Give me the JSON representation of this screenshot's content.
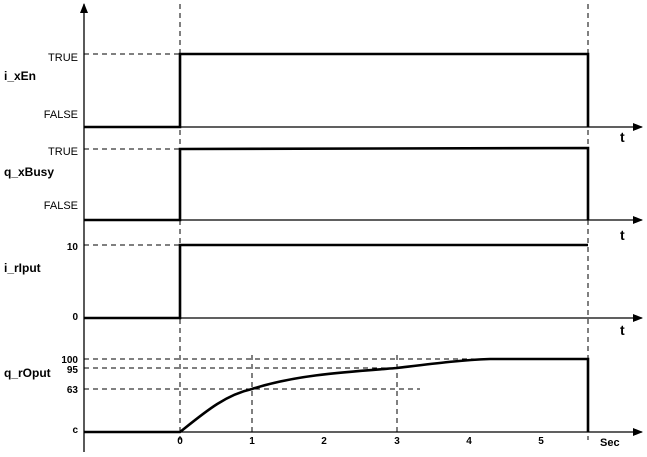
{
  "signals": [
    {
      "name": "i_xEn",
      "high_label": "TRUE",
      "low_label": "FALSE",
      "axis_label": "t"
    },
    {
      "name": "q_xBusy",
      "high_label": "TRUE",
      "low_label": "FALSE",
      "axis_label": "t"
    },
    {
      "name": "i_rIput",
      "high_label": "10",
      "low_label": "0",
      "axis_label": "t"
    },
    {
      "name": "q_rOput",
      "level_labels": [
        "100",
        "95",
        "63",
        "c"
      ],
      "axis_label": "Sec"
    }
  ],
  "time_ticks": [
    "0",
    "1",
    "2",
    "3",
    "4",
    "5"
  ]
}
